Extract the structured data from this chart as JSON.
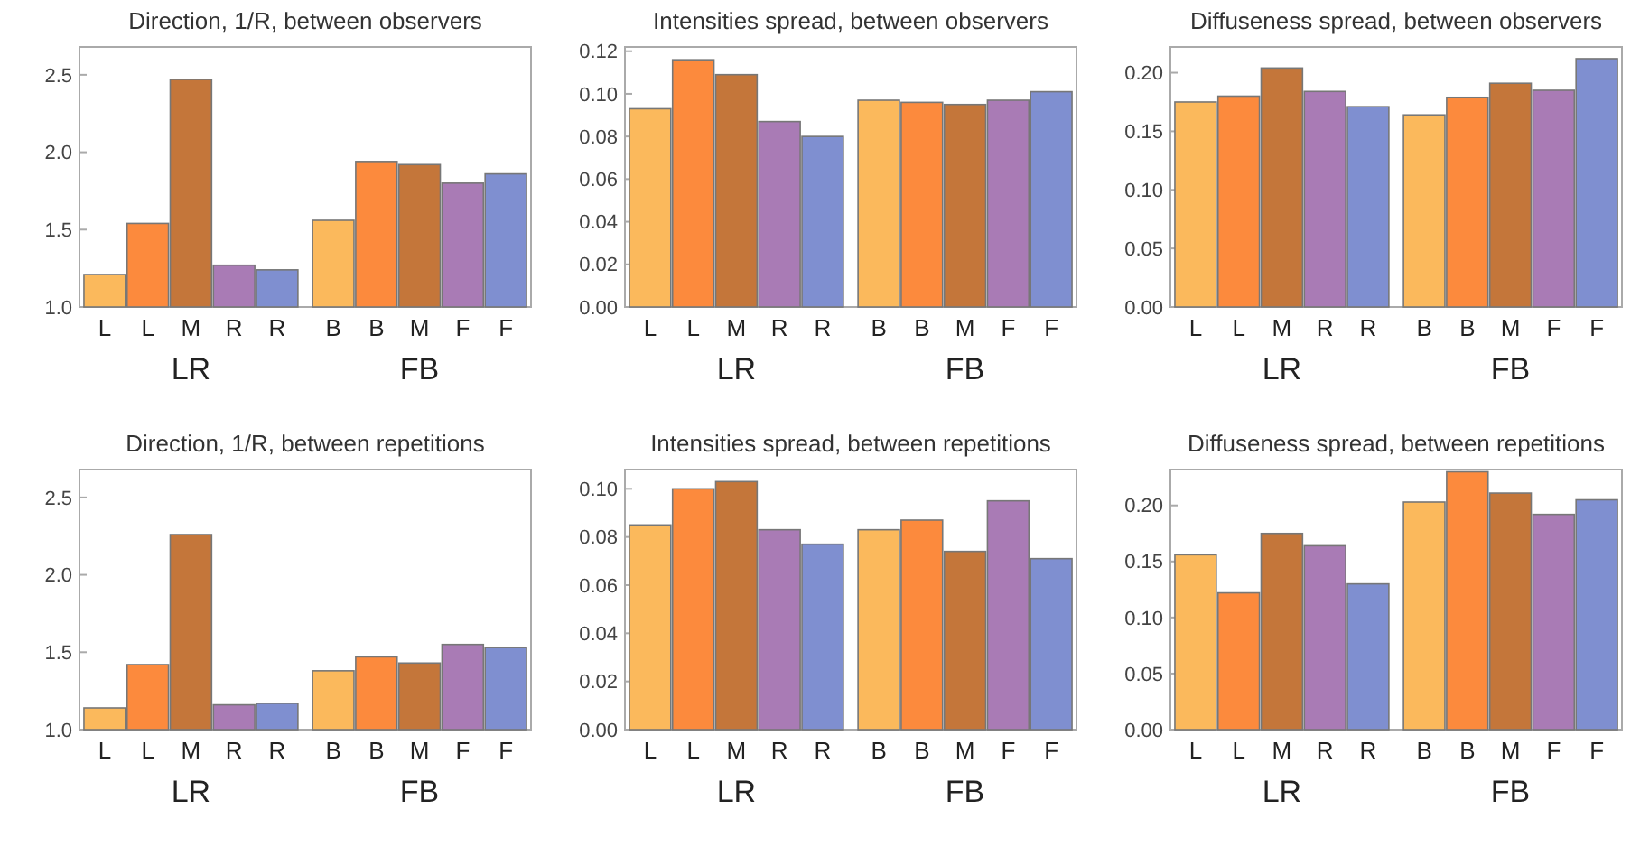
{
  "chart_data": [
    {
      "type": "bar",
      "title": "Direction, 1/R, between observers",
      "categories": [
        "L",
        "L",
        "M",
        "R",
        "R",
        null,
        "B",
        "B",
        "M",
        "F",
        "F"
      ],
      "values": [
        1.21,
        1.54,
        2.47,
        1.27,
        1.24,
        null,
        1.56,
        1.94,
        1.92,
        1.8,
        1.86
      ],
      "colors": [
        "#fbb95c",
        "#fc8a3d",
        "#c4763a",
        "#a97bb5",
        "#7f8fd0",
        null,
        "#fbb95c",
        "#fc8a3d",
        "#c4763a",
        "#a97bb5",
        "#7f8fd0"
      ],
      "ylim": [
        1.0,
        2.68
      ],
      "yticks": [
        {
          "value": 1,
          "label": "1.0"
        },
        {
          "value": 1.5,
          "label": "1.5"
        },
        {
          "value": 2,
          "label": "2.0"
        },
        {
          "value": 2.5,
          "label": "2.5"
        }
      ],
      "annotations": [
        "LR",
        "FB"
      ]
    },
    {
      "type": "bar",
      "title": "Intensities spread, between observers",
      "categories": [
        "L",
        "L",
        "M",
        "R",
        "R",
        null,
        "B",
        "B",
        "M",
        "F",
        "F"
      ],
      "values": [
        0.093,
        0.116,
        0.109,
        0.087,
        0.08,
        null,
        0.097,
        0.096,
        0.095,
        0.097,
        0.101
      ],
      "colors": [
        "#fbb95c",
        "#fc8a3d",
        "#c4763a",
        "#a97bb5",
        "#7f8fd0",
        null,
        "#fbb95c",
        "#fc8a3d",
        "#c4763a",
        "#a97bb5",
        "#7f8fd0"
      ],
      "ylim": [
        0,
        0.122
      ],
      "yticks": [
        {
          "value": 0,
          "label": "0.00"
        },
        {
          "value": 0.02,
          "label": "0.02"
        },
        {
          "value": 0.04,
          "label": "0.04"
        },
        {
          "value": 0.06,
          "label": "0.06"
        },
        {
          "value": 0.08,
          "label": "0.08"
        },
        {
          "value": 0.1,
          "label": "0.10"
        },
        {
          "value": 0.12,
          "label": "0.12"
        }
      ],
      "annotations": [
        "LR",
        "FB"
      ]
    },
    {
      "type": "bar",
      "title": "Diffuseness spread, between observers",
      "categories": [
        "L",
        "L",
        "M",
        "R",
        "R",
        null,
        "B",
        "B",
        "M",
        "F",
        "F"
      ],
      "values": [
        0.175,
        0.18,
        0.204,
        0.184,
        0.171,
        null,
        0.164,
        0.179,
        0.191,
        0.185,
        0.212
      ],
      "colors": [
        "#fbb95c",
        "#fc8a3d",
        "#c4763a",
        "#a97bb5",
        "#7f8fd0",
        null,
        "#fbb95c",
        "#fc8a3d",
        "#c4763a",
        "#a97bb5",
        "#7f8fd0"
      ],
      "ylim": [
        0,
        0.222
      ],
      "yticks": [
        {
          "value": 0,
          "label": "0.00"
        },
        {
          "value": 0.05,
          "label": "0.05"
        },
        {
          "value": 0.1,
          "label": "0.10"
        },
        {
          "value": 0.15,
          "label": "0.15"
        },
        {
          "value": 0.2,
          "label": "0.20"
        }
      ],
      "annotations": [
        "LR",
        "FB"
      ]
    },
    {
      "type": "bar",
      "title": "Direction, 1/R, between repetitions",
      "categories": [
        "L",
        "L",
        "M",
        "R",
        "R",
        null,
        "B",
        "B",
        "M",
        "F",
        "F"
      ],
      "values": [
        1.14,
        1.42,
        2.26,
        1.16,
        1.17,
        null,
        1.38,
        1.47,
        1.43,
        1.55,
        1.53
      ],
      "colors": [
        "#fbb95c",
        "#fc8a3d",
        "#c4763a",
        "#a97bb5",
        "#7f8fd0",
        null,
        "#fbb95c",
        "#fc8a3d",
        "#c4763a",
        "#a97bb5",
        "#7f8fd0"
      ],
      "ylim": [
        1.0,
        2.68
      ],
      "yticks": [
        {
          "value": 1,
          "label": "1.0"
        },
        {
          "value": 1.5,
          "label": "1.5"
        },
        {
          "value": 2,
          "label": "2.0"
        },
        {
          "value": 2.5,
          "label": "2.5"
        }
      ],
      "annotations": [
        "LR",
        "FB"
      ]
    },
    {
      "type": "bar",
      "title": "Intensities spread, between repetitions",
      "categories": [
        "L",
        "L",
        "M",
        "R",
        "R",
        null,
        "B",
        "B",
        "M",
        "F",
        "F"
      ],
      "values": [
        0.085,
        0.1,
        0.103,
        0.083,
        0.077,
        null,
        0.083,
        0.087,
        0.074,
        0.095,
        0.071
      ],
      "colors": [
        "#fbb95c",
        "#fc8a3d",
        "#c4763a",
        "#a97bb5",
        "#7f8fd0",
        null,
        "#fbb95c",
        "#fc8a3d",
        "#c4763a",
        "#a97bb5",
        "#7f8fd0"
      ],
      "ylim": [
        0,
        0.108
      ],
      "yticks": [
        {
          "value": 0,
          "label": "0.00"
        },
        {
          "value": 0.02,
          "label": "0.02"
        },
        {
          "value": 0.04,
          "label": "0.04"
        },
        {
          "value": 0.06,
          "label": "0.06"
        },
        {
          "value": 0.08,
          "label": "0.08"
        },
        {
          "value": 0.1,
          "label": "0.10"
        }
      ],
      "annotations": [
        "LR",
        "FB"
      ]
    },
    {
      "type": "bar",
      "title": "Diffuseness spread, between repetitions",
      "categories": [
        "L",
        "L",
        "M",
        "R",
        "R",
        null,
        "B",
        "B",
        "M",
        "F",
        "F"
      ],
      "values": [
        0.156,
        0.122,
        0.175,
        0.164,
        0.13,
        null,
        0.203,
        0.23,
        0.211,
        0.192,
        0.205
      ],
      "colors": [
        "#fbb95c",
        "#fc8a3d",
        "#c4763a",
        "#a97bb5",
        "#7f8fd0",
        null,
        "#fbb95c",
        "#fc8a3d",
        "#c4763a",
        "#a97bb5",
        "#7f8fd0"
      ],
      "ylim": [
        0,
        0.232
      ],
      "yticks": [
        {
          "value": 0,
          "label": "0.00"
        },
        {
          "value": 0.05,
          "label": "0.05"
        },
        {
          "value": 0.1,
          "label": "0.10"
        },
        {
          "value": 0.15,
          "label": "0.15"
        },
        {
          "value": 0.2,
          "label": "0.20"
        }
      ],
      "annotations": [
        "LR",
        "FB"
      ]
    }
  ]
}
